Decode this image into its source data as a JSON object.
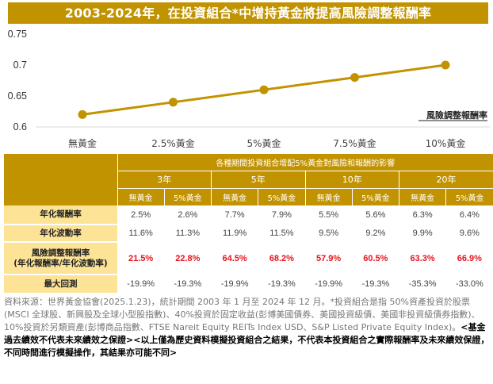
{
  "title": "2003-2024年，在投資組合*中增持黃金將提高風險調整報酬率",
  "chart_data": {
    "type": "line",
    "title": "2003-2024年，在投資組合*中增持黃金將提高風險調整報酬率",
    "categories": [
      "無黃金",
      "2.5%黃金",
      "5%黃金",
      "7.5%黃金",
      "10%黃金"
    ],
    "series": [
      {
        "name": "風險調整報酬率",
        "values": [
          0.62,
          0.64,
          0.66,
          0.68,
          0.7
        ]
      }
    ],
    "yticks": [
      "0.6",
      "0.65",
      "0.7",
      "0.75"
    ],
    "ylim": [
      0.6,
      0.75
    ],
    "xlabel": "",
    "ylabel": "",
    "legend": "bottom-right",
    "color": "#c29300"
  },
  "table": {
    "caption": "各種期間投資組合增配5%黃金對風險和報酬的影響",
    "periods": [
      "3年",
      "5年",
      "10年",
      "20年"
    ],
    "subcols": [
      "無黃金",
      "5%黃金",
      "無黃金",
      "5%黃金",
      "無黃金",
      "5%黃金",
      "無黃金",
      "5%黃金"
    ],
    "rows": [
      {
        "label": "年化報酬率",
        "label2": "",
        "values": [
          "2.5%",
          "2.6%",
          "7.7%",
          "7.9%",
          "5.5%",
          "5.6%",
          "6.3%",
          "6.4%"
        ]
      },
      {
        "label": "年化波動率",
        "label2": "",
        "values": [
          "11.6%",
          "11.3%",
          "11.9%",
          "11.5%",
          "9.5%",
          "9.2%",
          "9.9%",
          "9.6%"
        ]
      },
      {
        "label": "風險調整報酬率",
        "label2": "(年化報酬率/年化波動率)",
        "values": [
          "21.5%",
          "22.8%",
          "64.5%",
          "68.2%",
          "57.9%",
          "60.5%",
          "63.3%",
          "66.9%"
        ]
      },
      {
        "label": "最大回測",
        "label2": "",
        "values": [
          "-19.9%",
          "-19.3%",
          "-19.9%",
          "-19.3%",
          "-19.9%",
          "-19.3%",
          "-35.3%",
          "-33.0%"
        ]
      }
    ],
    "highlight_color": "#e6141e"
  },
  "footnote": {
    "source": "資料來源：世界黃金協會(2025.1.23)，統計期間 2003 年 1 月至 2024 年 12 月。*投資組合是指 50%資產投資於股票(MSCI 全球股、新興股及全球小型股指數)、40%投資於固定收益(彭博美國債券、美國投資級債、美國非投資級債券指數)、10%投資於另類資產(彭博商品指數、FTSE Nareit Equity REITs Index USD、S&P Listed Private Equity Index)。",
    "disclaimer": "<基金過去績效不代表未來績效之保證><以上僅為歷史資料模擬投資組合之結果，不代表本投資組合之實際報酬率及未來績效保證，不同時間進行模擬操作，其結果亦可能不同>"
  }
}
